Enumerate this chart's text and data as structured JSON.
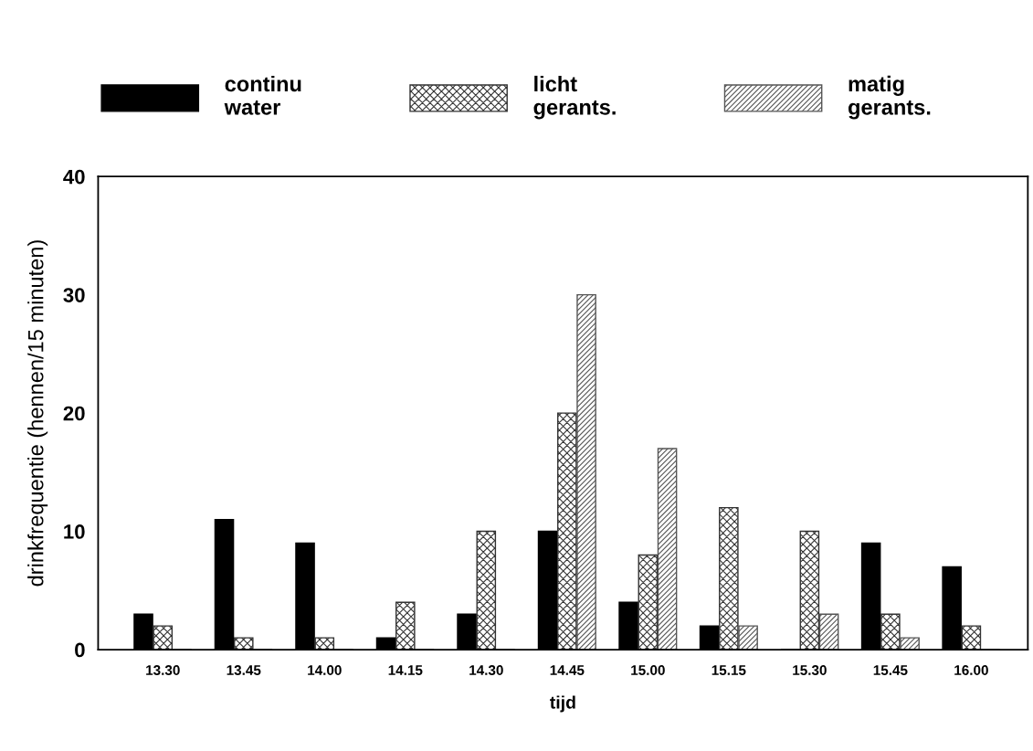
{
  "chart_data": {
    "type": "bar",
    "xlabel": "tijd",
    "ylabel": "drinkfrequentie (hennen/15 minuten)",
    "categories": [
      "13.30",
      "13.45",
      "14.00",
      "14.15",
      "14.30",
      "14.45",
      "15.00",
      "15.15",
      "15.30",
      "15.45",
      "16.00"
    ],
    "series": [
      {
        "name": "continu\nwater",
        "color": "#000000",
        "values": [
          3,
          11,
          9,
          1,
          3,
          10,
          4,
          2,
          0,
          9,
          7
        ]
      },
      {
        "name": "licht\ngerants.",
        "color": "#333333",
        "values": [
          2,
          1,
          1,
          4,
          10,
          20,
          8,
          12,
          10,
          3,
          2
        ]
      },
      {
        "name": "matig\ngerants.",
        "color": "#555555",
        "values": [
          0,
          0,
          0,
          0,
          0,
          30,
          17,
          2,
          3,
          1,
          0
        ]
      }
    ],
    "ylim": [
      0,
      40
    ],
    "yticks": [
      0,
      10,
      20,
      30,
      40
    ],
    "grid": false,
    "legend": "top"
  }
}
